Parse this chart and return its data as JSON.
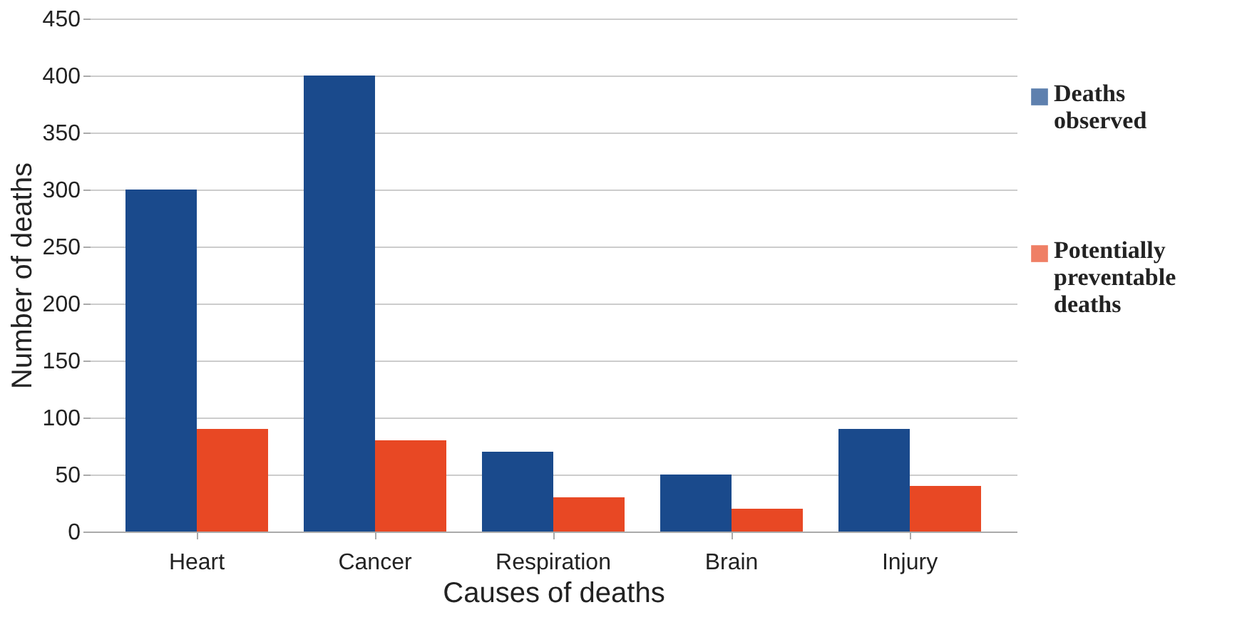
{
  "chart_data": {
    "type": "bar",
    "xlabel": "Causes of deaths",
    "ylabel": "Number of deaths",
    "categories": [
      "Heart",
      "Cancer",
      "Respiration",
      "Brain",
      "Injury"
    ],
    "series": [
      {
        "name": "Deaths observed",
        "color": "#1a4a8c",
        "values": [
          300,
          400,
          70,
          50,
          90
        ]
      },
      {
        "name": "Potentially preventable deaths",
        "color": "#e84824",
        "values": [
          90,
          80,
          30,
          20,
          40
        ]
      }
    ],
    "ylim": [
      0,
      450
    ],
    "yticks": [
      0,
      50,
      100,
      150,
      200,
      250,
      300,
      350,
      400,
      450
    ],
    "grid": "y",
    "legend": "right"
  }
}
